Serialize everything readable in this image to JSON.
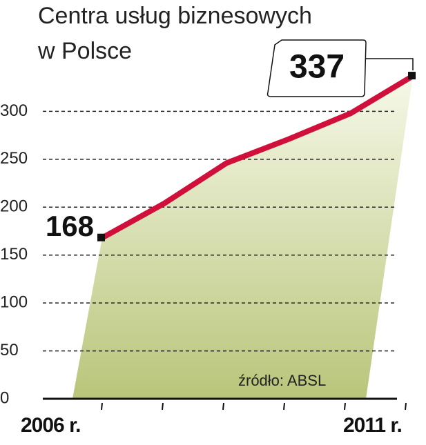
{
  "chart_data": {
    "type": "line",
    "title": "Centra usług biznesowych",
    "subtitle": "w Polsce",
    "source": "źródło: ABSL",
    "categories": [
      "2006 r.",
      null,
      null,
      null,
      null,
      "2011 r."
    ],
    "series": [
      {
        "name": "Centra usług biznesowych",
        "color": "#d0103a",
        "values": [
          168,
          204,
          246,
          271,
          298,
          337
        ],
        "value_labels": [
          "168",
          null,
          null,
          null,
          null,
          "337"
        ]
      }
    ],
    "ylim": [
      0,
      350
    ],
    "yticks": [
      0,
      50,
      100,
      150,
      200,
      250,
      300
    ],
    "grid": true
  }
}
